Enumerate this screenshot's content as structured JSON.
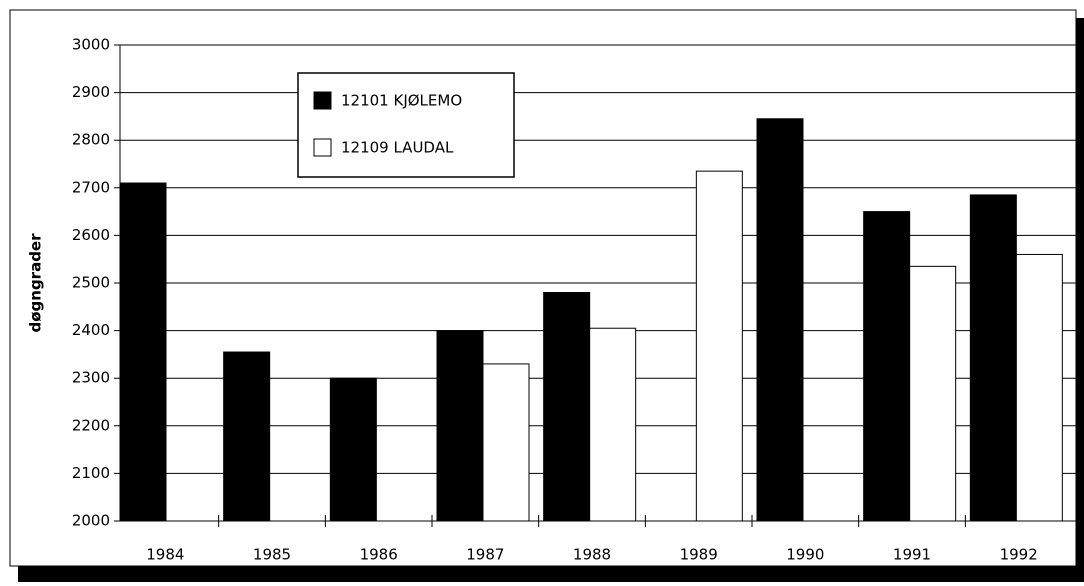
{
  "chart_data": {
    "type": "bar",
    "y_label": "døgngrader",
    "categories": [
      "1984",
      "1985",
      "1986",
      "1987",
      "1988",
      "1989",
      "1990",
      "1991",
      "1992"
    ],
    "series": [
      {
        "name": "12101 KJØLEMO",
        "color": "#000000",
        "values": [
          2710,
          2355,
          2300,
          2400,
          2480,
          null,
          2845,
          2650,
          2685
        ]
      },
      {
        "name": "12109 LAUDAL",
        "color": "#ffffff",
        "values": [
          null,
          null,
          null,
          2330,
          2405,
          2735,
          null,
          2535,
          2560
        ]
      }
    ],
    "ylim": [
      2000,
      3000
    ],
    "yticks": [
      2000,
      2100,
      2200,
      2300,
      2400,
      2500,
      2600,
      2700,
      2800,
      2900,
      3000
    ],
    "grid": true,
    "legend": "top-left"
  }
}
